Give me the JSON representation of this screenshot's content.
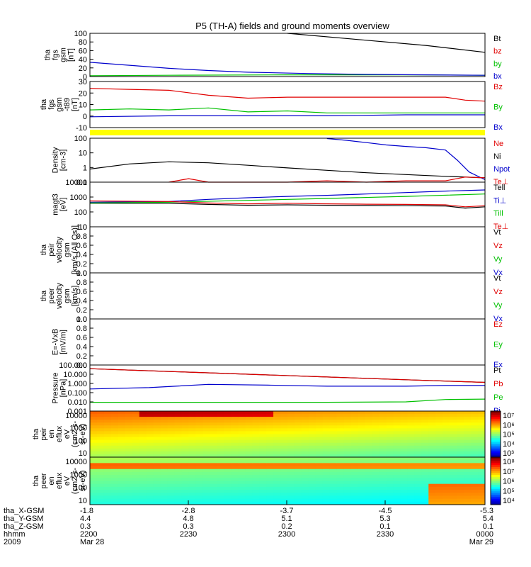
{
  "title": "P5 (TH-A) fields and ground moments overview",
  "colors": {
    "black": "#000000",
    "red": "#e00000",
    "green": "#00c000",
    "blue": "#0000cc",
    "yellow_bar": "#ffff00"
  },
  "chart_data": [
    {
      "type": "line",
      "ylabel": [
        "tha",
        "fgs",
        "gsm",
        "[nT]"
      ],
      "yticks": [
        "0",
        "20",
        "40",
        "60",
        "80",
        "100"
      ],
      "ylim": [
        0,
        100
      ],
      "legend_placement": "right",
      "series": [
        {
          "name": "Bt",
          "color": "#000000",
          "x": [
            0,
            0.36,
            0.5,
            0.7,
            0.85,
            1.0
          ],
          "values": [
            null,
            null,
            100,
            84,
            72,
            56
          ]
        },
        {
          "name": "bz",
          "color": "#e00000",
          "x": [
            0,
            1
          ],
          "values": [
            null,
            null
          ]
        },
        {
          "name": "by",
          "color": "#00c000",
          "x": [
            0,
            0.2,
            0.5,
            0.8,
            1.0
          ],
          "values": [
            2,
            3,
            4,
            4,
            3
          ]
        },
        {
          "name": "bx",
          "color": "#0000cc",
          "x": [
            0,
            0.1,
            0.2,
            0.3,
            0.4,
            0.55,
            0.7,
            0.85,
            1.0
          ],
          "values": [
            33,
            26,
            19,
            14,
            10,
            7,
            5,
            4,
            3
          ]
        }
      ]
    },
    {
      "type": "line",
      "ylabel": [
        "tha",
        "fgs",
        "gsm",
        "-t89",
        "[nT]"
      ],
      "yticks": [
        "-10",
        "0",
        "10",
        "20",
        "30"
      ],
      "ylim": [
        -15,
        32
      ],
      "legend_placement": "right",
      "series": [
        {
          "name": "Bz",
          "color": "#e00000",
          "x": [
            0,
            0.1,
            0.2,
            0.3,
            0.4,
            0.5,
            0.6,
            0.7,
            0.8,
            0.9,
            0.95,
            1.0
          ],
          "values": [
            25,
            24,
            23,
            18,
            15,
            16,
            16,
            16,
            16,
            16,
            13,
            12
          ]
        },
        {
          "name": "By",
          "color": "#00c000",
          "x": [
            0,
            0.1,
            0.2,
            0.3,
            0.4,
            0.5,
            0.6,
            0.7,
            0.8,
            0.9,
            1.0
          ],
          "values": [
            3,
            4,
            3,
            5,
            1,
            2,
            0,
            0,
            0,
            0,
            0
          ]
        },
        {
          "name": "Bx",
          "color": "#0000cc",
          "x": [
            0,
            0.2,
            0.4,
            0.6,
            0.8,
            1.0
          ],
          "values": [
            -4,
            -3,
            -3,
            -3,
            -2,
            -2
          ]
        }
      ]
    },
    {
      "type": "line",
      "ylabel": [
        "Density",
        "[cm-3]"
      ],
      "yticks": [
        "0.1",
        "1",
        "10",
        "100"
      ],
      "ylim": [
        0.5,
        200
      ],
      "yscale": "log",
      "legend_placement": "right",
      "series": [
        {
          "name": "Ne",
          "color": "#e00000",
          "x": [
            0,
            1
          ],
          "values": [
            null,
            null
          ]
        },
        {
          "name": "Ni",
          "color": "#000000",
          "x": [
            0,
            0.1,
            0.2,
            0.3,
            0.4,
            0.5,
            0.6,
            0.7,
            0.8,
            0.9,
            1.0
          ],
          "values": [
            3,
            6,
            8,
            7,
            5,
            3.5,
            2.5,
            1.8,
            1.4,
            1.1,
            0.9
          ]
        },
        {
          "name": "Npot",
          "color": "#0000cc",
          "x": [
            0.6,
            0.65,
            0.7,
            0.75,
            0.8,
            0.85,
            0.9,
            0.93,
            0.96,
            1.0
          ],
          "values": [
            190,
            150,
            110,
            80,
            65,
            55,
            40,
            10,
            2,
            0.7
          ]
        },
        {
          "name": "Te⊥",
          "color": "#e00000",
          "x": [
            0,
            0.2,
            0.25,
            0.3,
            0.4,
            0.5,
            0.6,
            0.7,
            0.8,
            0.9,
            0.95,
            1.0
          ],
          "values": [
            null,
            0.5,
            0.8,
            0.5,
            0.5,
            0.5,
            0.6,
            0.5,
            0.6,
            0.6,
            1.0,
            0.9
          ]
        }
      ]
    },
    {
      "type": "line",
      "ylabel": [
        "magt3",
        "[eV]"
      ],
      "yticks": [
        "10",
        "100",
        "1000",
        "10000"
      ],
      "ylim": [
        10,
        10000
      ],
      "yscale": "log",
      "legend_placement": "right",
      "series": [
        {
          "name": "Tell",
          "color": "#000000",
          "x": [
            0,
            0.2,
            0.3,
            0.4,
            0.5,
            0.6,
            0.7,
            0.8,
            0.9,
            0.95,
            1.0
          ],
          "values": [
            380,
            380,
            320,
            280,
            300,
            280,
            270,
            260,
            250,
            180,
            220
          ]
        },
        {
          "name": "Ti⊥",
          "color": "#0000cc",
          "x": [
            0,
            0.2,
            0.3,
            0.4,
            0.5,
            0.6,
            0.7,
            0.8,
            0.9,
            1.0
          ],
          "values": [
            450,
            500,
            700,
            900,
            1100,
            1300,
            1600,
            2000,
            2500,
            3000
          ]
        },
        {
          "name": "Till",
          "color": "#00c000",
          "x": [
            0,
            0.2,
            0.4,
            0.6,
            0.8,
            1.0
          ],
          "values": [
            400,
            450,
            600,
            800,
            1100,
            1600
          ]
        },
        {
          "name": "Te⊥",
          "color": "#e00000",
          "x": [
            0,
            0.2,
            0.3,
            0.4,
            0.5,
            0.6,
            0.7,
            0.8,
            0.9,
            0.95,
            1.0
          ],
          "values": [
            550,
            500,
            400,
            350,
            380,
            350,
            330,
            320,
            300,
            220,
            260
          ]
        }
      ]
    },
    {
      "type": "line",
      "ylabel": [
        "tha",
        "peir",
        "velocity",
        "gsm",
        "[km/s (All Qs)]"
      ],
      "yticks": [
        "0.0",
        "0.2",
        "0.4",
        "0.6",
        "0.8",
        "1.0"
      ],
      "ylim": [
        0,
        1
      ],
      "legend_placement": "right",
      "series": [
        {
          "name": "Vt",
          "color": "#000000",
          "values": []
        },
        {
          "name": "Vz",
          "color": "#e00000",
          "values": []
        },
        {
          "name": "Vy",
          "color": "#00c000",
          "values": []
        },
        {
          "name": "Vx",
          "color": "#0000cc",
          "values": []
        }
      ]
    },
    {
      "type": "line",
      "ylabel": [
        "tha",
        "peer",
        "velocity",
        "gsm",
        "[km/s]"
      ],
      "yticks": [
        "0.0",
        "0.2",
        "0.4",
        "0.6",
        "0.8",
        "1.0"
      ],
      "ylim": [
        0,
        1
      ],
      "legend_placement": "right",
      "series": [
        {
          "name": "Vt",
          "color": "#000000",
          "values": []
        },
        {
          "name": "Vz",
          "color": "#e00000",
          "values": []
        },
        {
          "name": "Vy",
          "color": "#00c000",
          "values": []
        },
        {
          "name": "Vx",
          "color": "#0000cc",
          "values": []
        }
      ]
    },
    {
      "type": "line",
      "ylabel": [
        "E=-VxB",
        "[mV/m]"
      ],
      "yticks": [
        "0.0",
        "0.2",
        "0.4",
        "0.6",
        "0.8",
        "1.0"
      ],
      "ylim": [
        0,
        1
      ],
      "legend_placement": "right",
      "series": [
        {
          "name": "Ez",
          "color": "#e00000",
          "values": []
        },
        {
          "name": "Ey",
          "color": "#00c000",
          "values": []
        },
        {
          "name": "Ex",
          "color": "#0000cc",
          "values": []
        }
      ]
    },
    {
      "type": "line",
      "ylabel": [
        "Pressure",
        "[nPa]"
      ],
      "yticks": [
        "0.001",
        "0.010",
        "0.100",
        "1.000",
        "10.000",
        "100.000"
      ],
      "ylim": [
        0.001,
        100
      ],
      "yscale": "log",
      "legend_placement": "right",
      "series": [
        {
          "name": "Pt",
          "color": "#000000",
          "x": [
            0,
            0.2,
            0.4,
            0.6,
            0.8,
            1.0
          ],
          "values": [
            40,
            20,
            10,
            5,
            2.5,
            1.3
          ]
        },
        {
          "name": "Pb",
          "color": "#e00000",
          "x": [
            0,
            0.2,
            0.4,
            0.6,
            0.8,
            1.0
          ],
          "values": [
            40,
            20,
            10,
            5,
            2.5,
            1.3
          ]
        },
        {
          "name": "Pe",
          "color": "#00c000",
          "x": [
            0,
            0.2,
            0.4,
            0.6,
            0.8,
            0.9,
            1.0
          ],
          "values": [
            0.009,
            0.009,
            0.009,
            0.009,
            0.01,
            0.018,
            0.02
          ]
        },
        {
          "name": "Pi",
          "color": "#0000cc",
          "x": [
            0,
            0.15,
            0.3,
            0.45,
            0.6,
            0.8,
            0.9,
            1.0
          ],
          "values": [
            0.25,
            0.35,
            0.8,
            0.65,
            0.5,
            0.5,
            0.6,
            0.6
          ]
        }
      ]
    },
    {
      "type": "heatmap",
      "ylabel": [
        "tha",
        "peir",
        "en",
        "eflux",
        "eV",
        "(cm2-s-",
        "sr-eV)"
      ],
      "yticks": [
        "10",
        "100",
        "1000",
        "10000"
      ],
      "colorbar_ticks": [
        "10³",
        "10⁴",
        "10⁵",
        "10⁶",
        "10⁷"
      ]
    },
    {
      "type": "heatmap",
      "ylabel": [
        "tha",
        "peer",
        "en",
        "eflux",
        "eV",
        "(cm2-s-",
        "sr-eV)"
      ],
      "yticks": [
        "10",
        "100",
        "1000",
        "10000"
      ],
      "colorbar_ticks": [
        "10⁴",
        "10⁵",
        "10⁶",
        "10⁷",
        "10⁸"
      ]
    }
  ],
  "axis_footer": {
    "rows": [
      {
        "label": "tha_X-GSM",
        "values": [
          "-1.8",
          "-2.8",
          "-3.7",
          "-4.5",
          "-5.3"
        ]
      },
      {
        "label": "tha_Y-GSM",
        "values": [
          "4.4",
          "4.8",
          "5.1",
          "5.3",
          "5.4"
        ]
      },
      {
        "label": "tha_Z-GSM",
        "values": [
          "0.3",
          "0.3",
          "0.2",
          "0.1",
          "0.1"
        ]
      },
      {
        "label": "hhmm",
        "values": [
          "2200",
          "2230",
          "2300",
          "2330",
          "0000"
        ]
      },
      {
        "label": "2009",
        "values": [
          "Mar 28",
          "",
          "",
          "",
          "Mar 29"
        ]
      }
    ]
  }
}
